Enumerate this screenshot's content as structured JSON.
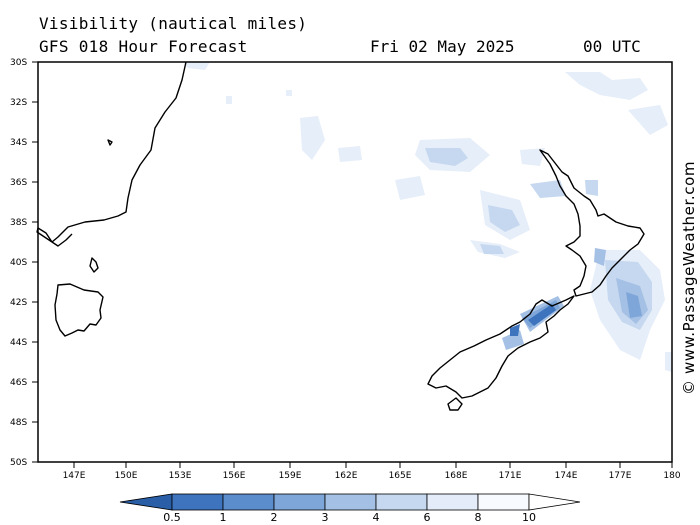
{
  "header": {
    "title": "Visibility (nautical miles)",
    "model": "GFS 018 Hour Forecast",
    "date": "Fri 02 May 2025",
    "time": "00 UTC"
  },
  "credit": "© www.PassageWeather.com",
  "axes": {
    "lat_labels": [
      "30S",
      "32S",
      "34S",
      "36S",
      "38S",
      "40S",
      "42S",
      "44S",
      "46S",
      "48S",
      "50S"
    ],
    "lon_labels": [
      "147E",
      "150E",
      "153E",
      "156E",
      "159E",
      "162E",
      "165E",
      "168E",
      "171E",
      "174E",
      "177E",
      "180"
    ]
  },
  "colorbar": {
    "labels": [
      "0.5",
      "1",
      "2",
      "3",
      "4",
      "6",
      "8",
      "10"
    ],
    "colors": [
      "#2a5fa8",
      "#3e74bd",
      "#5b8ccb",
      "#7fa6d8",
      "#a4c0e4",
      "#c6d8ef",
      "#e3ecf8",
      "#f7faff",
      "#ffffff"
    ]
  },
  "map": {
    "coast_color": "#000000",
    "land_color": "#ffffff",
    "sea_color": "#ffffff",
    "extent": {
      "lon": [
        145,
        180
      ],
      "lat": [
        -50,
        -30
      ]
    }
  }
}
